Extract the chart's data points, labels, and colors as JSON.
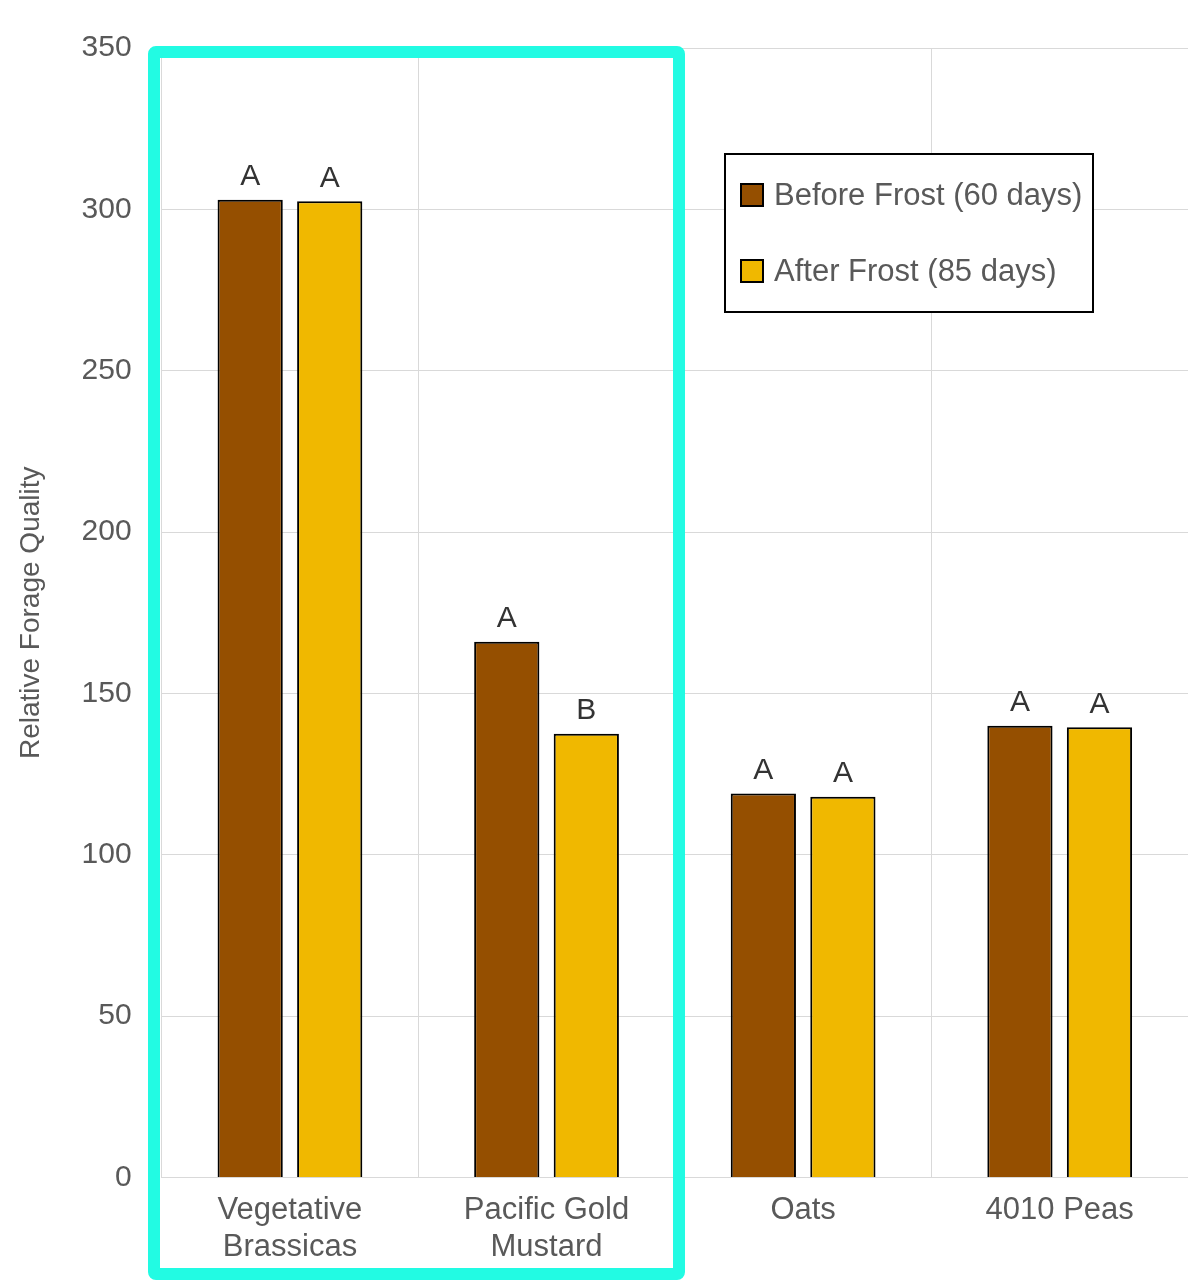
{
  "chart_data": {
    "type": "bar",
    "ylabel": "Relative Forage Quality",
    "categories": [
      "Vegetative Brassicas",
      "Pacific Gold Mustard",
      "Oats",
      "4010 Peas"
    ],
    "series": [
      {
        "name": "Before Frost (60 days)",
        "color": "#954f00",
        "values": [
          303,
          166,
          119,
          140
        ],
        "value_labels": [
          "A",
          "A",
          "A",
          "A"
        ]
      },
      {
        "name": "After Frost (85 days)",
        "color": "#f0b800",
        "values": [
          302.5,
          137.5,
          118,
          139.5
        ],
        "value_labels": [
          "A",
          "B",
          "A",
          "A"
        ]
      }
    ],
    "ylim": [
      0,
      350
    ],
    "yticks": [
      0,
      50,
      100,
      150,
      200,
      250,
      300,
      350
    ],
    "grid": true,
    "legend": "top right"
  }
}
